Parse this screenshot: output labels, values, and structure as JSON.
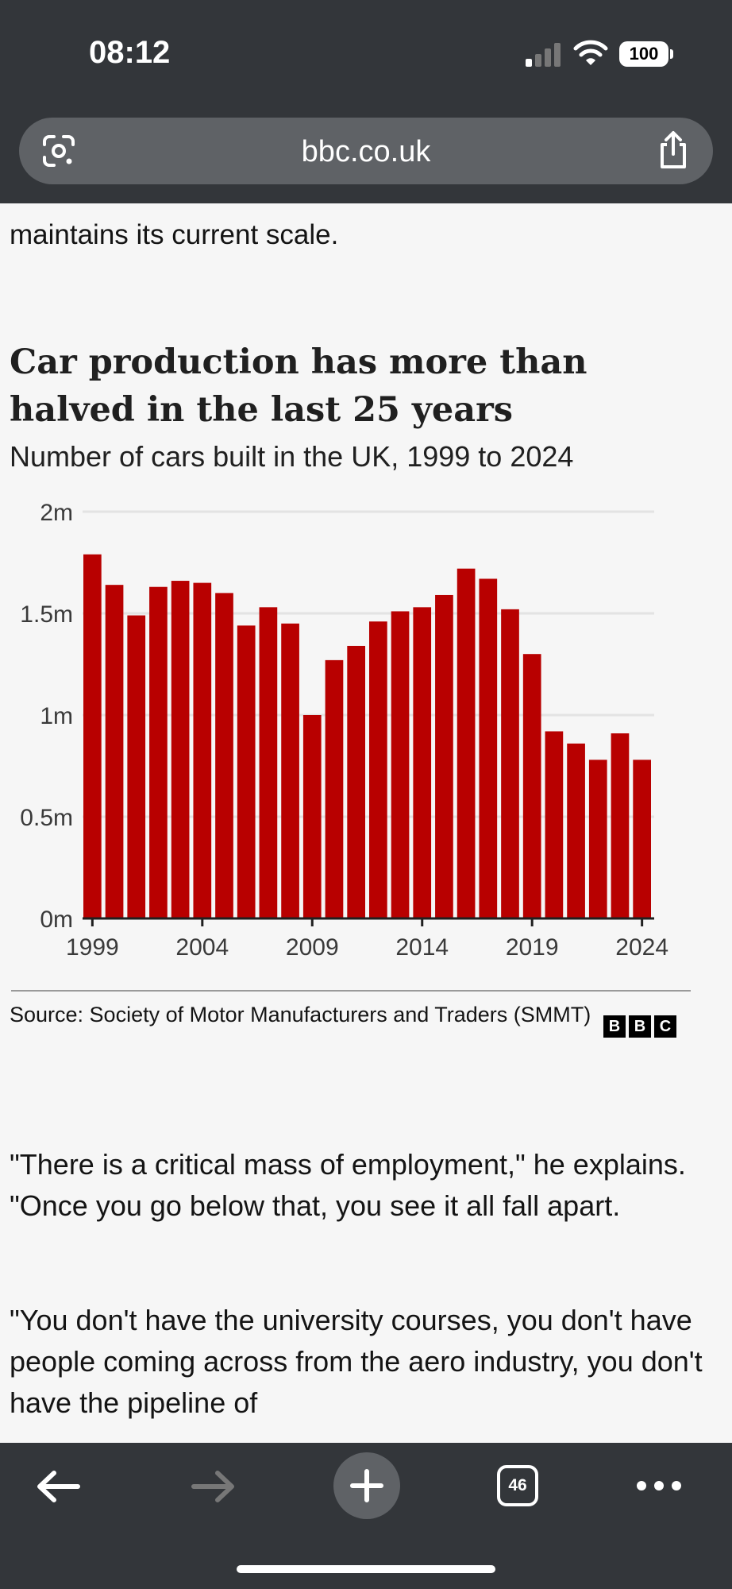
{
  "status_bar": {
    "time": "08:12",
    "battery": "100"
  },
  "browser": {
    "url": "bbc.co.uk",
    "tabs_count": "46"
  },
  "article": {
    "prev_line": "maintains its current scale.",
    "chart_title": "Car production has more than halved in the last 25 years",
    "chart_subtitle": "Number of cars built in the UK, 1999 to 2024",
    "source": "Source: Society of Motor Manufacturers and Traders (SMMT)",
    "logo_letters": [
      "B",
      "B",
      "C"
    ],
    "paragraph1": "\"There is a critical mass of employment,\" he explains. \"Once you go below that, you see it all fall apart.",
    "paragraph2": "\"You don't have the university courses, you don't have people coming across from the aero industry, you don't have the pipeline of"
  },
  "chart_data": {
    "type": "bar",
    "title": "Car production has more than halved in the last 25 years",
    "subtitle": "Number of cars built in the UK, 1999 to 2024",
    "xlabel": "",
    "ylabel": "",
    "categories": [
      "1999",
      "2000",
      "2001",
      "2002",
      "2003",
      "2004",
      "2005",
      "2006",
      "2007",
      "2008",
      "2009",
      "2010",
      "2011",
      "2012",
      "2013",
      "2014",
      "2015",
      "2016",
      "2017",
      "2018",
      "2019",
      "2020",
      "2021",
      "2022",
      "2023",
      "2024"
    ],
    "values": [
      1.79,
      1.64,
      1.49,
      1.63,
      1.66,
      1.65,
      1.6,
      1.44,
      1.53,
      1.45,
      1.0,
      1.27,
      1.34,
      1.46,
      1.51,
      1.53,
      1.59,
      1.72,
      1.67,
      1.52,
      1.3,
      0.92,
      0.86,
      0.78,
      0.91,
      0.78
    ],
    "ylim": [
      0,
      2
    ],
    "yticks": [
      0,
      0.5,
      1,
      1.5,
      2
    ],
    "ytick_labels": [
      "0m",
      "0.5m",
      "1m",
      "1.5m",
      "2m"
    ],
    "xtick_labels": [
      "1999",
      "2004",
      "2009",
      "2014",
      "2019",
      "2024"
    ],
    "bar_color": "#b80000",
    "grid": true,
    "source": "Society of Motor Manufacturers and Traders (SMMT)"
  }
}
